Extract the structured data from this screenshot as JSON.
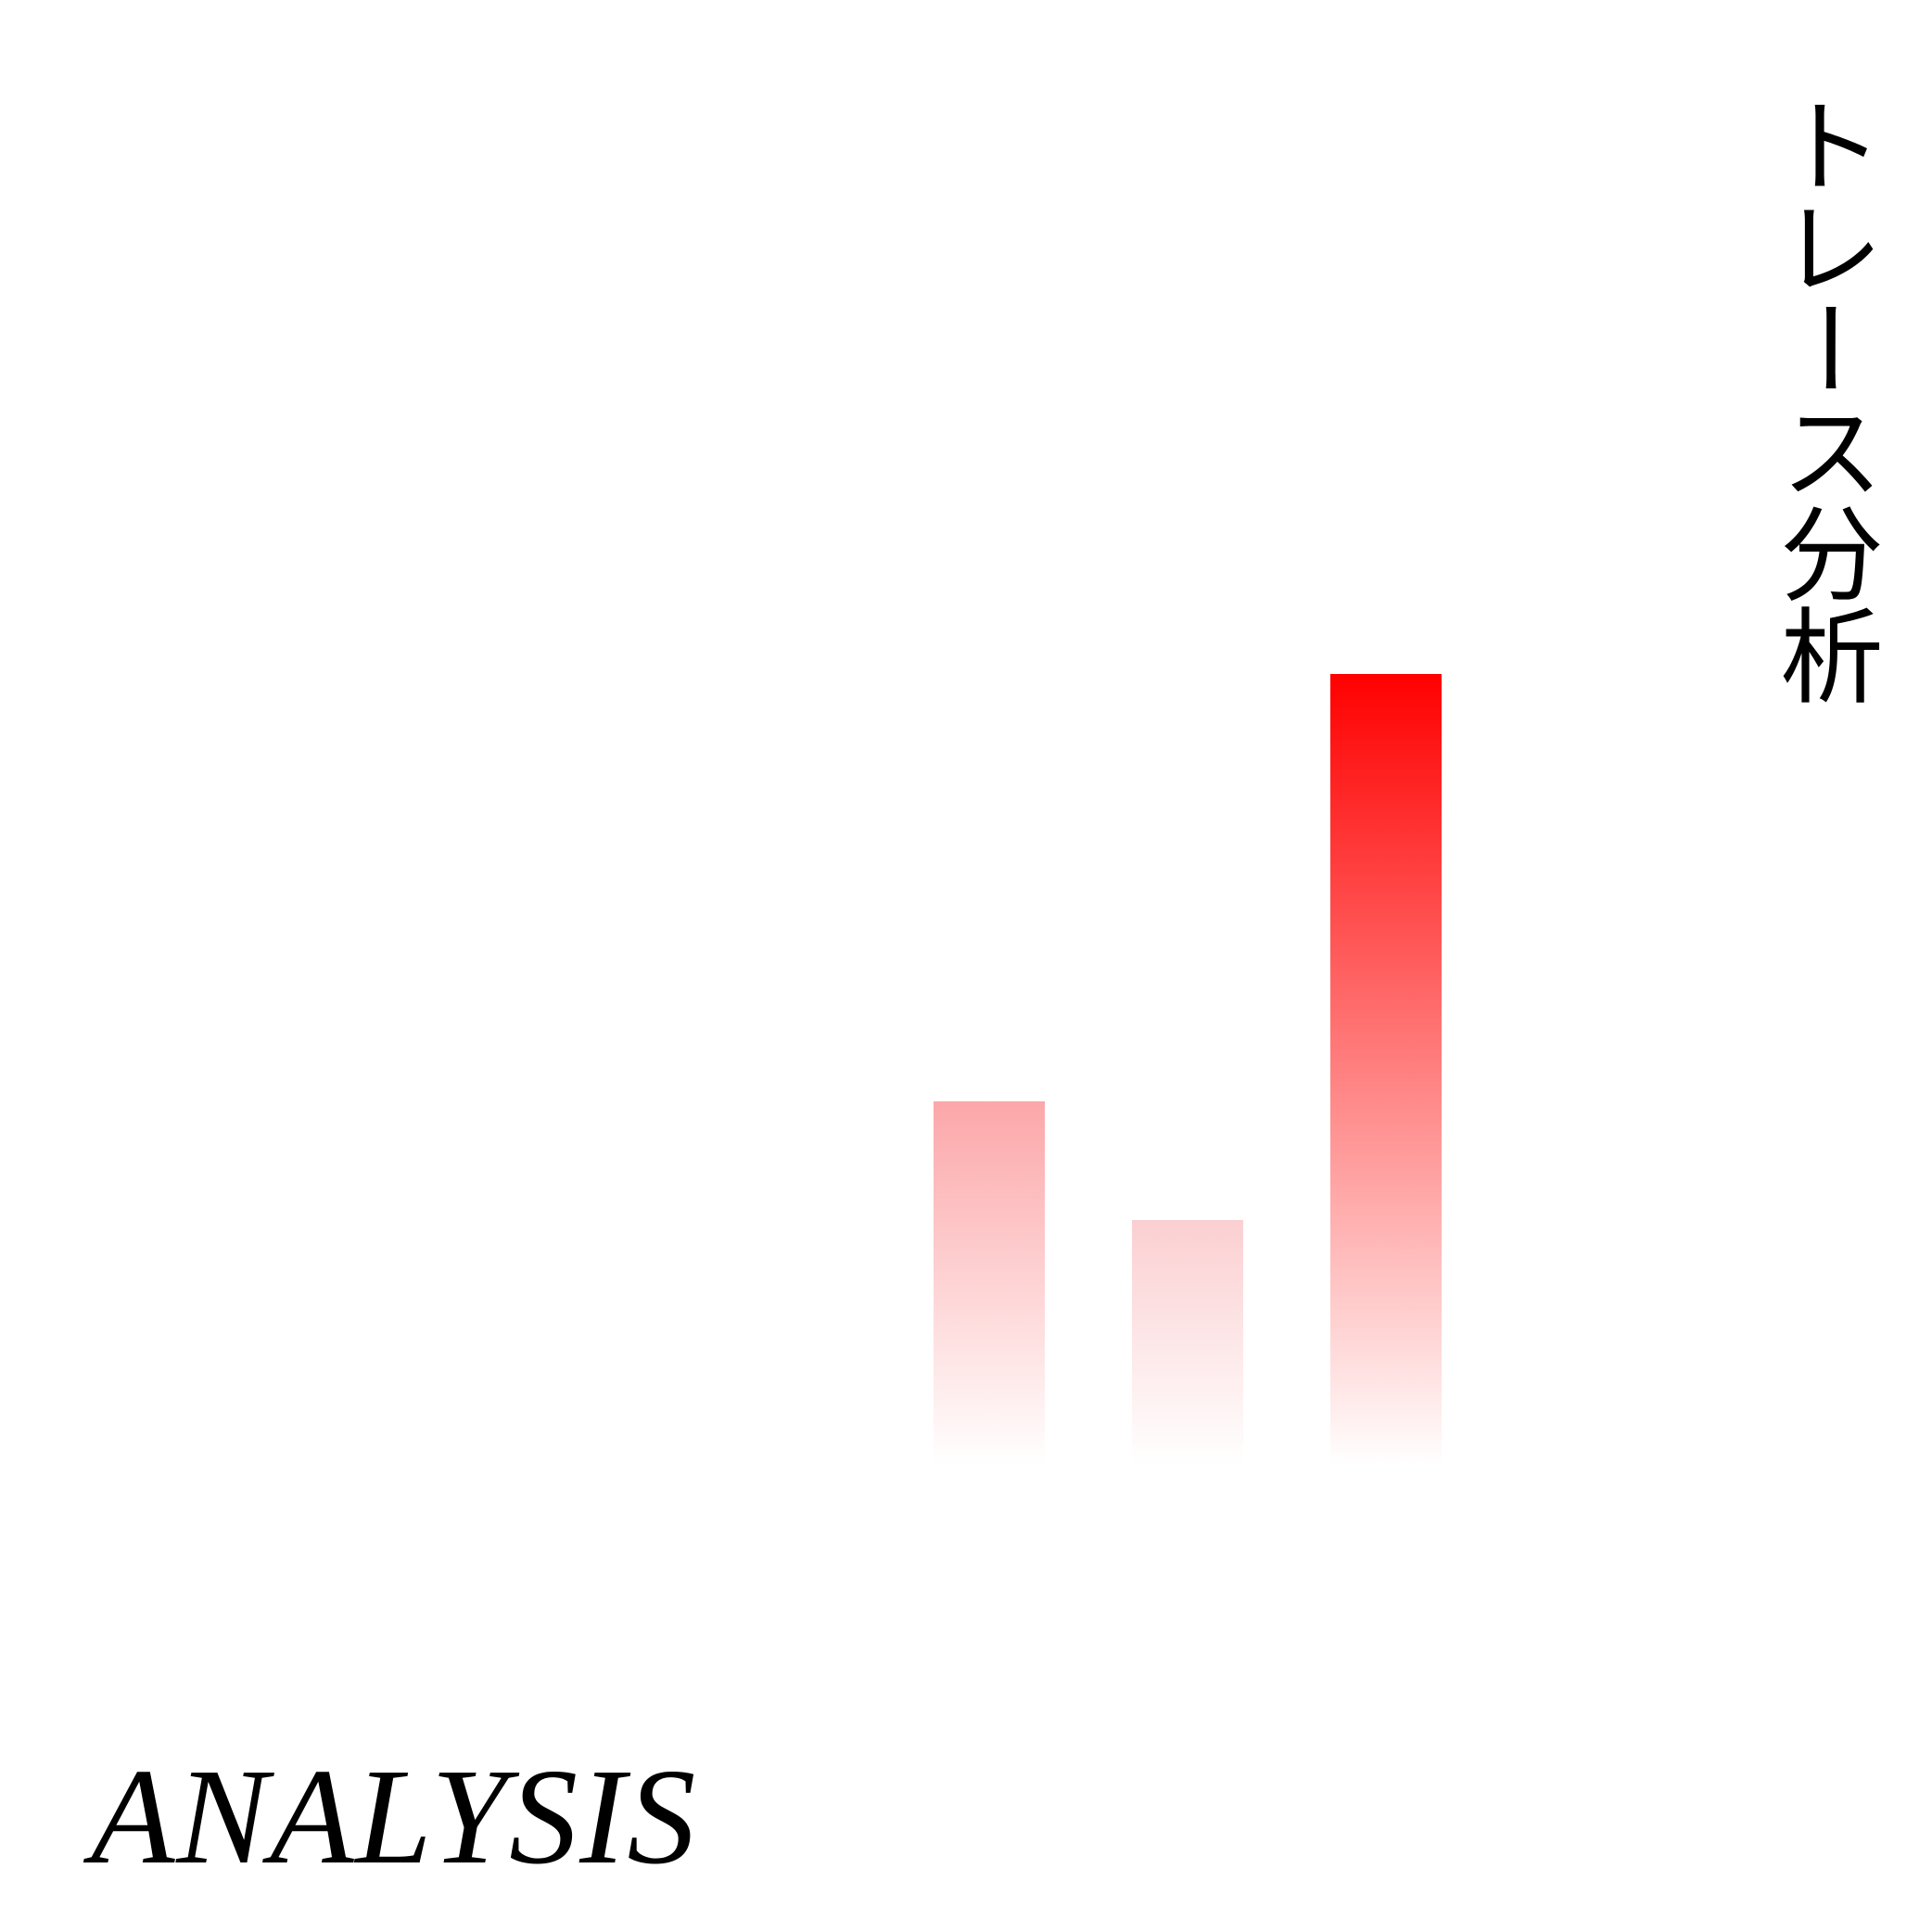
{
  "vertical_title": "トレース分析",
  "bottom_title": "ANALYSIS",
  "bars": [
    {
      "level": 0.46,
      "color_top": "#fca7a9",
      "color_bottom": "#ffffff"
    },
    {
      "level": 0.31,
      "color_top": "#fbcfd1",
      "color_bottom": "#ffffff"
    },
    {
      "level": 1.0,
      "color_top": "#ff0000",
      "color_bottom": "#ffffff"
    }
  ],
  "colors": {
    "background": "#ffffff",
    "text": "#000000",
    "accent": "#ff0000"
  }
}
